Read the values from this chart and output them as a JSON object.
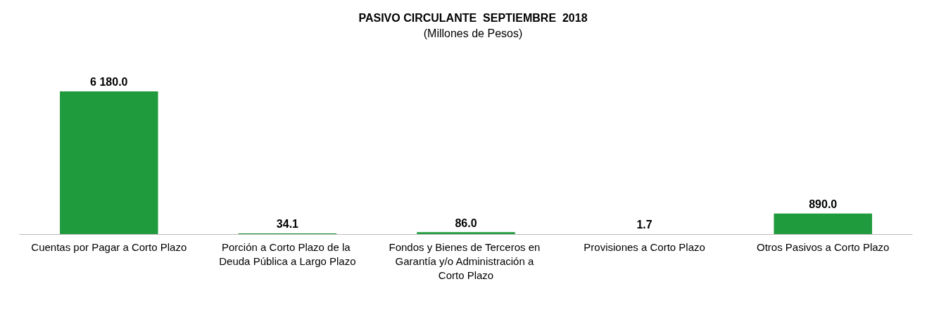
{
  "chart_data": {
    "type": "bar",
    "title": "PASIVO CIRCULANTE  SEPTIEMBRE  2018",
    "subtitle": "(Millones de Pesos)",
    "categories": [
      "Cuentas por Pagar a Corto Plazo",
      "Porción a Corto Plazo de la Deuda Pública a Largo Plazo",
      "Fondos y Bienes de Terceros en Garantía y/o Administración a Corto Plazo",
      "Provisiones a Corto Plazo",
      "Otros Pasivos a Corto Plazo"
    ],
    "values": [
      6180.0,
      34.1,
      86.0,
      1.7,
      890.0
    ],
    "value_labels": [
      "6 180.0",
      "34.1",
      "86.0",
      "1.7",
      "890.0"
    ],
    "color": "#1f9a3c"
  }
}
